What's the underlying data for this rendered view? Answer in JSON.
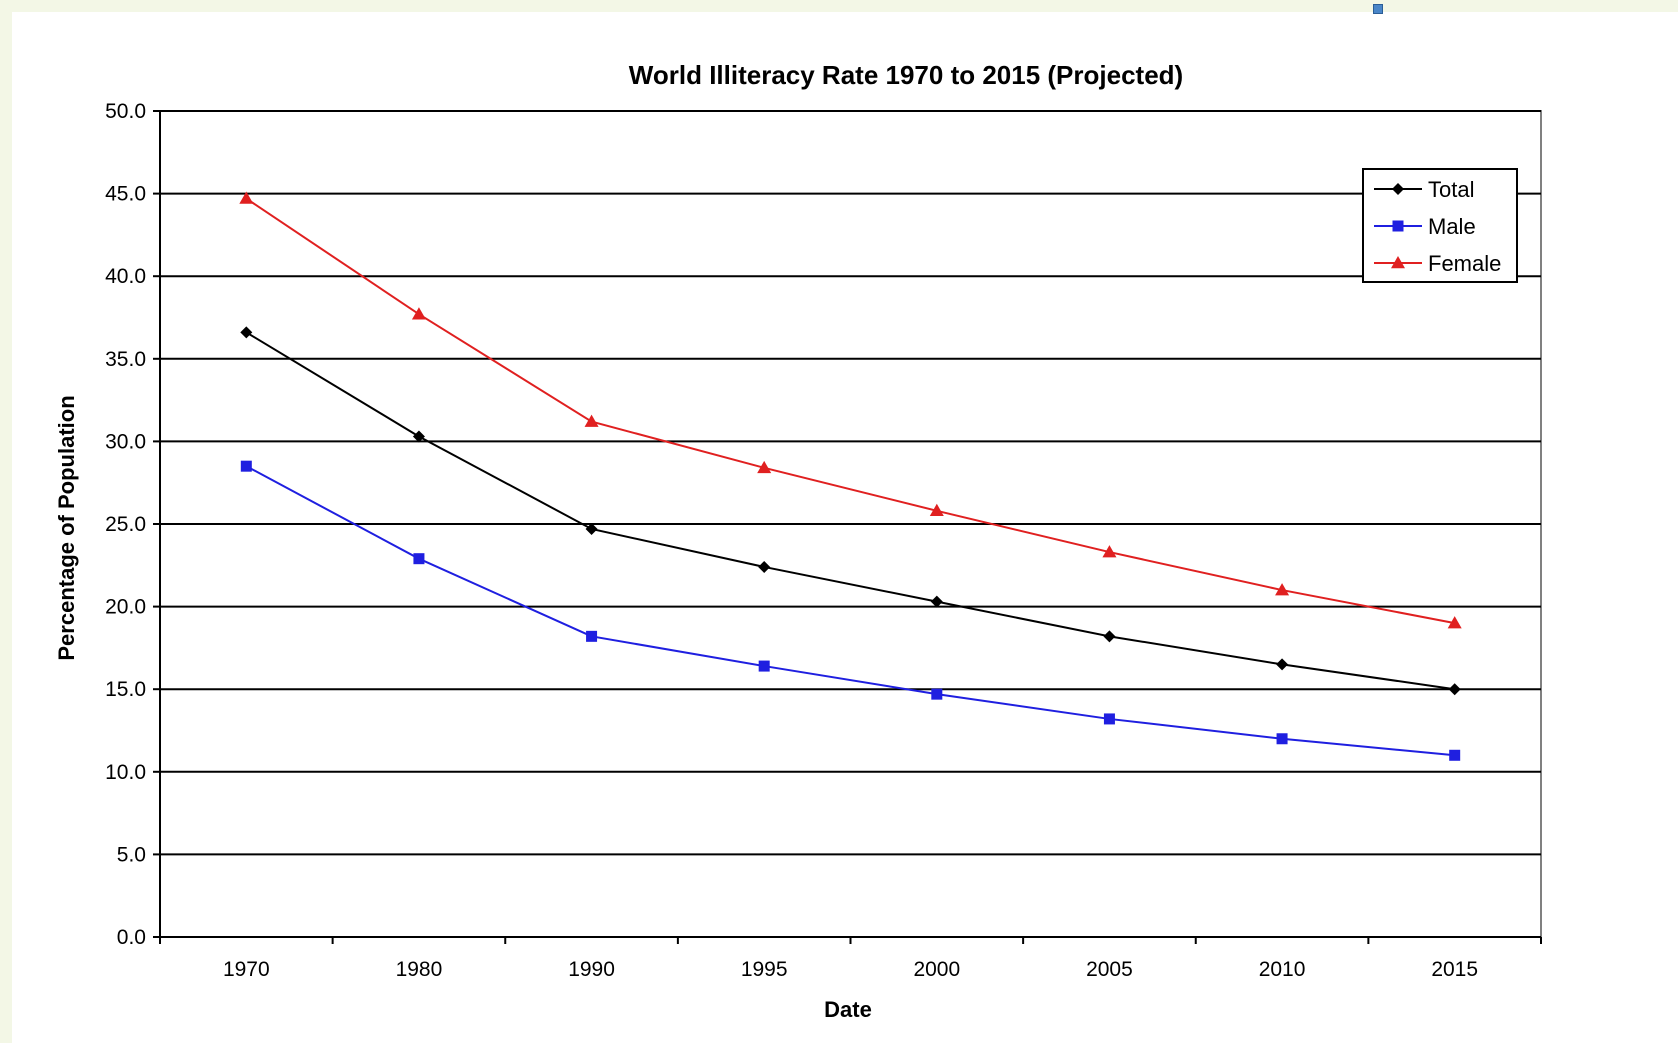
{
  "colors": {
    "total": "#000000",
    "male": "#1f1fe0",
    "female": "#e02020"
  },
  "chart_data": {
    "type": "line",
    "title": "World Illiteracy Rate 1970 to 2015 (Projected)",
    "xlabel": "Date",
    "ylabel": "Percentage of Population",
    "categories": [
      "1970",
      "1980",
      "1990",
      "1995",
      "2000",
      "2005",
      "2010",
      "2015"
    ],
    "ylim": [
      0,
      50
    ],
    "yticks": [
      "0.0",
      "5.0",
      "10.0",
      "15.0",
      "20.0",
      "25.0",
      "30.0",
      "35.0",
      "40.0",
      "45.0",
      "50.0"
    ],
    "grid": true,
    "legend_position": "top-right",
    "series": [
      {
        "name": "Total",
        "marker": "diamond",
        "values": [
          36.6,
          30.3,
          24.7,
          22.4,
          20.3,
          18.2,
          16.5,
          15.0
        ]
      },
      {
        "name": "Male",
        "marker": "square",
        "values": [
          28.5,
          22.9,
          18.2,
          16.4,
          14.7,
          13.2,
          12.0,
          11.0
        ]
      },
      {
        "name": "Female",
        "marker": "triangle",
        "values": [
          44.7,
          37.7,
          31.2,
          28.4,
          25.8,
          23.3,
          21.0,
          19.0
        ]
      }
    ]
  }
}
